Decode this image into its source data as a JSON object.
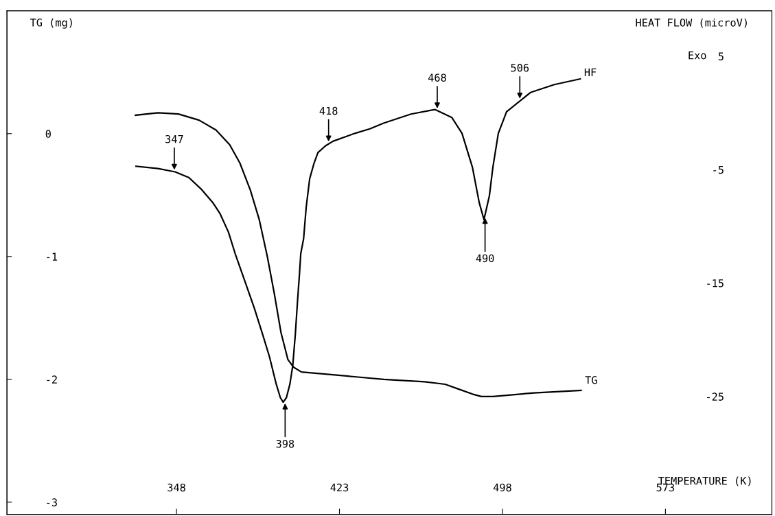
{
  "chart_data": {
    "type": "line",
    "xlabel": "TEMPERATURE (K)",
    "ylabel": "TG (mg)",
    "y2label": "HEAT FLOW (microV)",
    "xlim": [
      270,
      622
    ],
    "xticks": [
      348,
      423,
      498,
      573
    ],
    "ylim": [
      -3.1,
      1
    ],
    "yticks": [
      0,
      -1,
      -2,
      -3
    ],
    "y2lim": [
      -35.4,
      9
    ],
    "y2ticks": [
      5,
      -5,
      -15,
      -25
    ],
    "grid": false,
    "legend": false,
    "marker": "none",
    "line_style": "solid",
    "series": [
      {
        "name": "TG",
        "color": "#000000",
        "x": [
          329.1,
          339.5,
          348.9,
          358.4,
          366.2,
          372.5,
          377.2,
          382.0,
          386.1,
          389.8,
          393.0,
          396.1,
          399.3,
          401.8,
          405.5,
          418.1,
          430.7,
          443.3,
          462.2,
          471.6,
          477.9,
          484.2,
          488.3,
          493.6,
          512.5,
          534.2
        ],
        "values": [
          0.15,
          0.17,
          0.16,
          0.11,
          0.03,
          -0.09,
          -0.24,
          -0.46,
          -0.7,
          -1.0,
          -1.3,
          -1.62,
          -1.84,
          -1.9,
          -1.94,
          -1.96,
          -1.98,
          -2.0,
          -2.02,
          -2.04,
          -2.08,
          -2.12,
          -2.14,
          -2.14,
          -2.11,
          -2.09
        ]
      },
      {
        "name": "HF",
        "color": "#000000",
        "axis": "y2",
        "x": [
          329.4,
          339.5,
          347.4,
          353.7,
          359.3,
          364.7,
          368.1,
          371.9,
          375.0,
          379.4,
          383.8,
          387.6,
          390.8,
          393.9,
          395.8,
          397.1,
          398.6,
          400.2,
          401.5,
          402.7,
          403.7,
          404.6,
          405.2,
          406.5,
          407.7,
          409.3,
          411.2,
          413.1,
          416.6,
          420.0,
          430.1,
          437.0,
          443.3,
          455.9,
          466.9,
          474.7,
          479.4,
          484.2,
          487.3,
          489.5,
          492.0,
          493.6,
          496.1,
          499.9,
          510.9,
          521.9,
          533.8
        ],
        "values": [
          -4.7,
          -4.9,
          -5.2,
          -5.7,
          -6.7,
          -7.9,
          -8.9,
          -10.5,
          -12.4,
          -14.8,
          -17.2,
          -19.5,
          -21.5,
          -23.9,
          -25.1,
          -25.5,
          -25.1,
          -23.9,
          -22.3,
          -19.5,
          -16.6,
          -14.2,
          -12.4,
          -11.1,
          -8.3,
          -5.8,
          -4.5,
          -3.5,
          -2.9,
          -2.5,
          -1.8,
          -1.4,
          -0.9,
          -0.1,
          0.3,
          -0.4,
          -1.8,
          -4.8,
          -7.9,
          -9.4,
          -7.3,
          -4.8,
          -1.8,
          0.1,
          1.8,
          2.5,
          3.0
        ]
      }
    ],
    "annotations": [
      {
        "text": "347",
        "x": 347,
        "y": -0.31
      },
      {
        "text": "398",
        "x": 398,
        "y": -2.18
      },
      {
        "text": "418",
        "x": 418,
        "y": -0.08
      },
      {
        "text": "468",
        "x": 468,
        "y": 0.19
      },
      {
        "text": "490",
        "x": 490,
        "y": -0.67
      },
      {
        "text": "506",
        "x": 506,
        "y": 0.27
      },
      "Exo"
    ]
  }
}
